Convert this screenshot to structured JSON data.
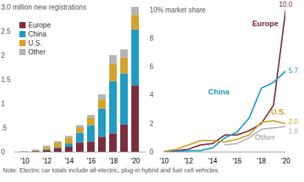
{
  "chart_data": [
    {
      "type": "bar",
      "stacked": true,
      "categories": [
        "'10",
        null,
        "'12",
        null,
        "'14",
        null,
        "'16",
        null,
        "'18",
        null,
        "'20"
      ],
      "series": [
        {
          "name": "Europe",
          "color": "#7b2d3e",
          "values": [
            0.003,
            0.01,
            0.03,
            0.07,
            0.1,
            0.19,
            0.21,
            0.31,
            0.38,
            0.56,
            1.37
          ]
        },
        {
          "name": "China",
          "color": "#1f9bc4",
          "values": [
            0.002,
            0.005,
            0.015,
            0.015,
            0.07,
            0.2,
            0.34,
            0.58,
            1.08,
            1.06,
            1.16
          ]
        },
        {
          "name": "U.S.",
          "color": "#d6a22c",
          "values": [
            0.001,
            0.018,
            0.05,
            0.1,
            0.12,
            0.11,
            0.16,
            0.2,
            0.36,
            0.33,
            0.3
          ]
        },
        {
          "name": "Other",
          "color": "#b5b5b5",
          "values": [
            0.003,
            0.015,
            0.03,
            0.03,
            0.04,
            0.05,
            0.05,
            0.1,
            0.18,
            0.17,
            0.17
          ]
        }
      ],
      "ylim": [
        0,
        3
      ],
      "yticks": [
        0,
        {
          "value": 0.5,
          "label": ".5"
        },
        1,
        1.5,
        2,
        2.5,
        {
          "value": 3,
          "label": "3.0 million new registrations"
        }
      ],
      "legend": "top-left",
      "grid": false
    },
    {
      "type": "line",
      "x": [
        2010,
        2011,
        2012,
        2013,
        2014,
        2015,
        2016,
        2017,
        2018,
        2019,
        2020
      ],
      "xlim": [
        2010,
        2020
      ],
      "xticks": [
        {
          "value": 2010,
          "label": "'10"
        },
        {
          "value": 2012,
          "label": "'12"
        },
        {
          "value": 2014,
          "label": "'14"
        },
        {
          "value": 2016,
          "label": "'16"
        },
        {
          "value": 2018,
          "label": "'18"
        },
        {
          "value": 2020,
          "label": "'20"
        }
      ],
      "ylim": [
        0,
        10
      ],
      "yticks": [
        0,
        2,
        4,
        6,
        8,
        {
          "value": 10,
          "label": "10% market share"
        }
      ],
      "series": [
        {
          "name": "Europe",
          "color": "#7b2d3e",
          "values": [
            0.0,
            0.1,
            0.2,
            0.5,
            0.6,
            1.2,
            1.2,
            1.5,
            2.0,
            3.3,
            10.0
          ],
          "value_labels": [
            null,
            null,
            null,
            null,
            null,
            null,
            null,
            null,
            null,
            null,
            "10.0"
          ]
        },
        {
          "name": "China",
          "color": "#1f9bc4",
          "values": [
            0.0,
            0.05,
            0.1,
            0.1,
            0.3,
            1.0,
            1.4,
            2.4,
            4.5,
            4.9,
            5.7
          ],
          "value_labels": [
            null,
            null,
            null,
            null,
            null,
            null,
            null,
            null,
            null,
            null,
            "5.7"
          ]
        },
        {
          "name": "U.S.",
          "color": "#d6a22c",
          "values": [
            0.05,
            0.2,
            0.5,
            0.8,
            0.8,
            0.7,
            0.9,
            1.2,
            2.1,
            2.2,
            2.0
          ],
          "value_labels": [
            null,
            null,
            null,
            null,
            null,
            null,
            null,
            null,
            null,
            null,
            "2.0"
          ]
        },
        {
          "name": "Other",
          "color": "#b5b5b5",
          "values": [
            null,
            null,
            null,
            null,
            null,
            0.5,
            0.6,
            1.0,
            1.6,
            1.7,
            1.8
          ],
          "value_labels": [
            null,
            null,
            null,
            null,
            null,
            null,
            null,
            null,
            null,
            null,
            "1.8"
          ]
        }
      ],
      "data_labels": true,
      "grid": false
    }
  ],
  "caption": "Note: Electric car totals include all-electric, plug-in hybrid and fuel cell vehicles."
}
